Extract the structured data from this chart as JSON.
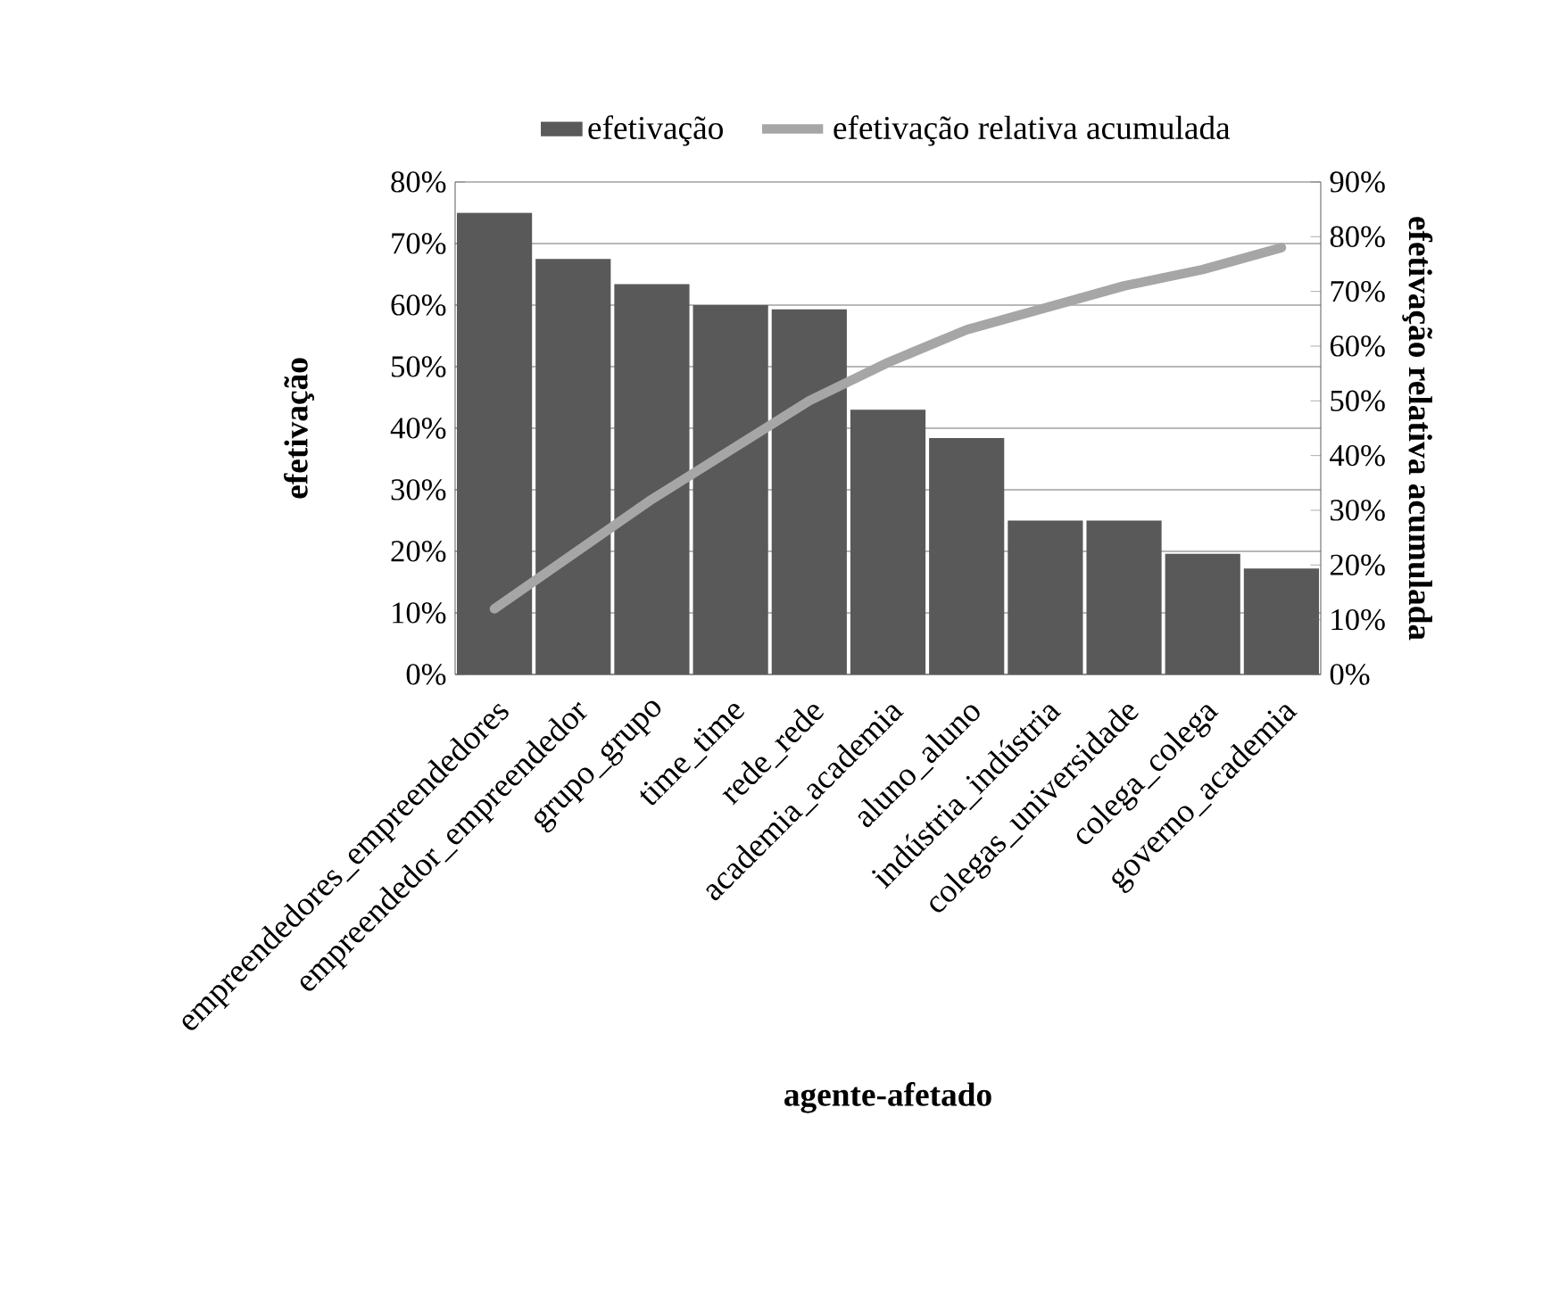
{
  "chart_data": {
    "type": "bar",
    "categories": [
      "empreendedores_empreendedores",
      "empreendedor_empreendedor",
      "grupo_grupo",
      "time_time",
      "rede_rede",
      "academia_academia",
      "aluno_aluno",
      "indústria_indústria",
      "colegas_universidade",
      "colega_colega",
      "governo_academia"
    ],
    "series": [
      {
        "name": "efetivação",
        "type": "bar",
        "color": "#595959",
        "values": [
          75,
          67.5,
          63.4,
          60,
          59.3,
          43,
          38.4,
          25,
          25,
          19.6,
          17.2
        ]
      },
      {
        "name": "efetivação relativa acumulada",
        "type": "line",
        "axis": "y2",
        "color": "#a6a6a6",
        "values": [
          12,
          22,
          32,
          41,
          50,
          57,
          63,
          67,
          71,
          74,
          78
        ]
      }
    ],
    "xlabel": "agente-afetado",
    "ylabel": "efetivação",
    "y2label": "efetivação relativa acumulada",
    "ylim": [
      0,
      80
    ],
    "yticks": [
      {
        "value": 0,
        "label": "0%"
      },
      {
        "value": 10,
        "label": "10%"
      },
      {
        "value": 20,
        "label": "20%"
      },
      {
        "value": 30,
        "label": "30%"
      },
      {
        "value": 40,
        "label": "40%"
      },
      {
        "value": 50,
        "label": "50%"
      },
      {
        "value": 60,
        "label": "60%"
      },
      {
        "value": 70,
        "label": "70%"
      },
      {
        "value": 80,
        "label": "80%"
      }
    ],
    "y2lim": [
      0,
      90
    ],
    "y2ticks": [
      {
        "value": 0,
        "label": "0%"
      },
      {
        "value": 10,
        "label": "10%"
      },
      {
        "value": 20,
        "label": "20%"
      },
      {
        "value": 30,
        "label": "30%"
      },
      {
        "value": 40,
        "label": "40%"
      },
      {
        "value": 50,
        "label": "50%"
      },
      {
        "value": 60,
        "label": "60%"
      },
      {
        "value": 70,
        "label": "70%"
      },
      {
        "value": 80,
        "label": "80%"
      },
      {
        "value": 90,
        "label": "90%"
      }
    ],
    "grid": "y",
    "legend": "top",
    "marker": "none",
    "line_style": "solid"
  }
}
